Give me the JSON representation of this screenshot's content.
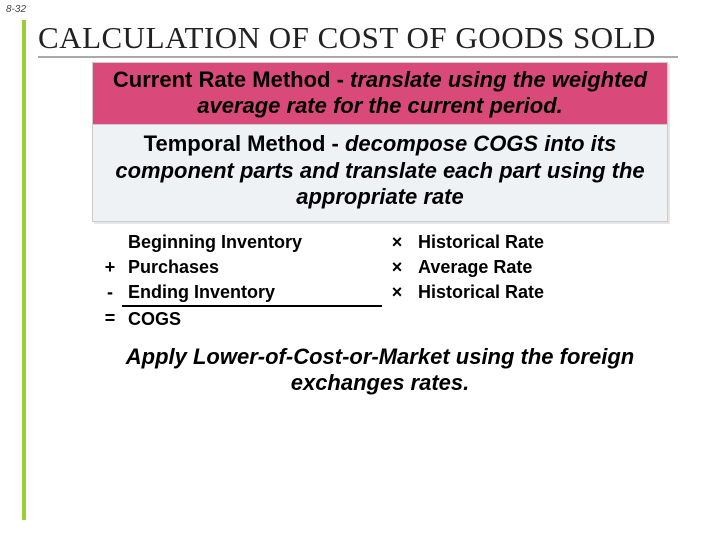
{
  "page_number": "8-32",
  "title": "CALCULATION OF COST OF GOODS SOLD",
  "pink_box": {
    "lead": "Current Rate Method - ",
    "rest": "translate using the weighted average rate for the current period."
  },
  "blue_box": {
    "lead": "Temporal Method - ",
    "rest": "decompose COGS into its component parts and translate each part using the appropriate rate"
  },
  "cogs_rows": [
    {
      "op": "",
      "item": "Beginning Inventory",
      "mul": "×",
      "rate": "Historical Rate"
    },
    {
      "op": "+",
      "item": "Purchases",
      "mul": "×",
      "rate": "Average Rate"
    },
    {
      "op": "-",
      "item": "Ending Inventory",
      "mul": "×",
      "rate": "Historical Rate"
    },
    {
      "op": "=",
      "item": "COGS",
      "mul": "",
      "rate": ""
    }
  ],
  "footer": "Apply Lower-of-Cost-or-Market using the foreign exchanges rates.",
  "colors": {
    "accent_green": "#9acd32",
    "pink": "#d94a7a",
    "blue_bg": "#eef2f5"
  }
}
